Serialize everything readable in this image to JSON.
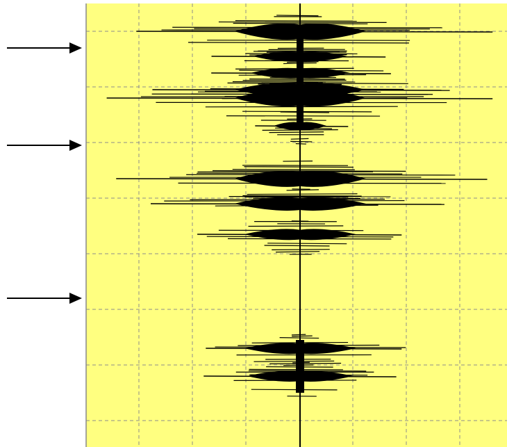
{
  "chart_data": {
    "type": "line",
    "title": "",
    "xlabel": "",
    "ylabel": "",
    "orientation": "vertical-time-axis",
    "grid": true,
    "grid_style": "dashed",
    "x_gridlines": 8,
    "y_gridlines": 8,
    "background_color": "#ffff80",
    "trace_color": "#000000",
    "grid_color": "#8c8c8c",
    "ylim": [
      0,
      8
    ],
    "xlim": [
      -4,
      4
    ],
    "series": [
      {
        "bursts": [
          {
            "t": 0.0,
            "amplitude": 3.6
          },
          {
            "t": 0.45,
            "amplitude": 1.6
          },
          {
            "t": 0.75,
            "amplitude": 1.7
          },
          {
            "t": 1.05,
            "amplitude": 2.8
          },
          {
            "t": 1.2,
            "amplitude": 3.6
          },
          {
            "t": 1.7,
            "amplitude": 0.9
          },
          {
            "t": 2.65,
            "amplitude": 3.5
          },
          {
            "t": 3.1,
            "amplitude": 2.7
          },
          {
            "t": 3.65,
            "amplitude": 1.9
          },
          {
            "t": 5.7,
            "amplitude": 1.9
          },
          {
            "t": 6.2,
            "amplitude": 1.8
          }
        ]
      }
    ],
    "markers": [
      {
        "name": "arrow",
        "t": 0.3
      },
      {
        "name": "arrow",
        "t": 2.05
      },
      {
        "name": "arrow",
        "t": 4.8
      }
    ]
  }
}
